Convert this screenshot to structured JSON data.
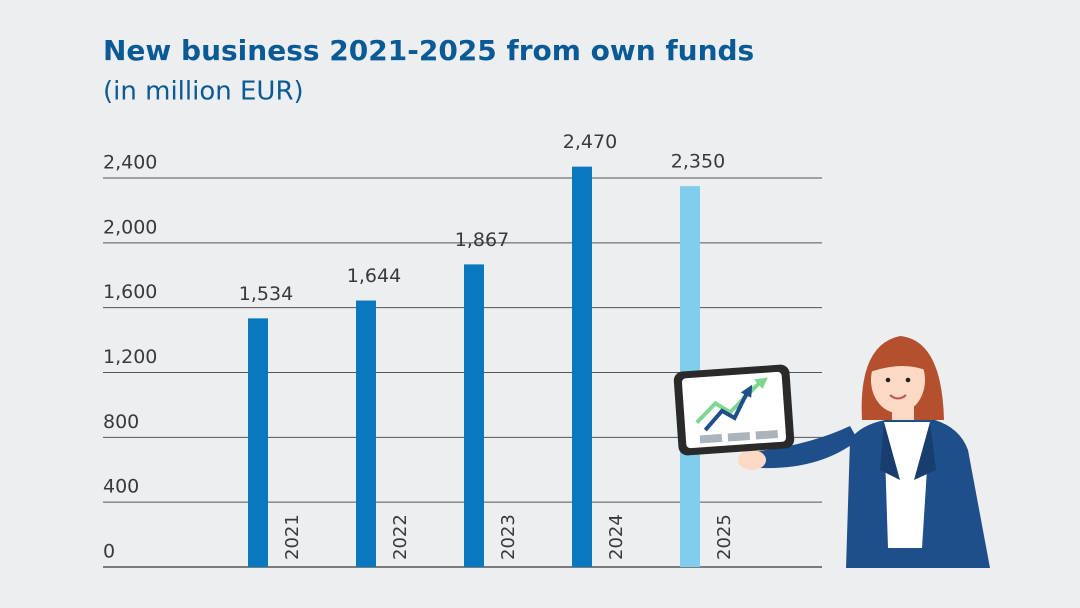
{
  "chart_data": {
    "type": "bar",
    "title": "New business 2021-2025 from own funds",
    "subtitle": "(in million EUR)",
    "categories": [
      "2021",
      "2022",
      "2023",
      "2024",
      "2025"
    ],
    "values": [
      1534,
      1644,
      1867,
      2470,
      2350
    ],
    "value_labels": [
      "1,534",
      "1,644",
      "1,867",
      "2,470",
      "2,350"
    ],
    "colors": [
      "#0a78be",
      "#0a78be",
      "#0a78be",
      "#0a78be",
      "#80cdee"
    ],
    "ylim": [
      0,
      2400
    ],
    "yticks": [
      0,
      400,
      800,
      {
        "value": 1200,
        "label": "1,200"
      },
      {
        "value": 1600,
        "label": "1,600"
      },
      {
        "value": 2000,
        "label": "2,000"
      },
      {
        "value": 2400,
        "label": "2,400"
      }
    ],
    "grid": true
  }
}
